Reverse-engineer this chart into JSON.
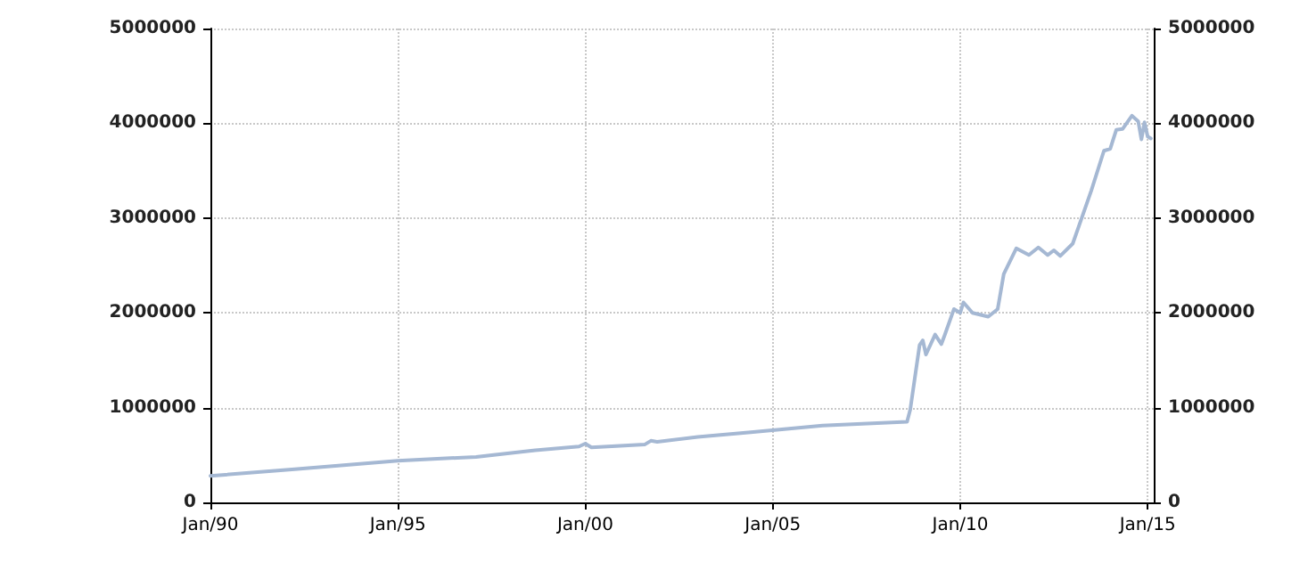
{
  "chart_data": {
    "type": "line",
    "x": [
      "1990-01",
      "1992-04",
      "1995-01",
      "1997-02",
      "1998-09",
      "1999-11",
      "2000-01",
      "2000-03",
      "2001-08",
      "2001-10",
      "2001-12",
      "2003-01",
      "2004-06",
      "2006-05",
      "2008-08",
      "2008-09",
      "2008-12",
      "2009-01",
      "2009-02",
      "2009-05",
      "2009-07",
      "2009-08",
      "2009-11",
      "2010-01",
      "2010-02",
      "2010-05",
      "2010-10",
      "2011-01",
      "2011-03",
      "2011-07",
      "2011-11",
      "2012-02",
      "2012-05",
      "2012-07",
      "2012-09",
      "2013-01",
      "2013-07",
      "2013-11",
      "2014-01",
      "2014-03",
      "2014-05",
      "2014-08",
      "2014-10",
      "2014-11",
      "2014-12",
      "2015-01",
      "2015-02"
    ],
    "series": [
      {
        "color": "#a5b8d3",
        "values": [
          280000,
          350000,
          440000,
          480000,
          550000,
          590000,
          620000,
          580000,
          610000,
          650000,
          640000,
          690000,
          740000,
          810000,
          850000,
          980000,
          1660000,
          1710000,
          1560000,
          1770000,
          1670000,
          1760000,
          2040000,
          2000000,
          2110000,
          2000000,
          1960000,
          2040000,
          2410000,
          2680000,
          2610000,
          2690000,
          2610000,
          2660000,
          2600000,
          2730000,
          3290000,
          3710000,
          3730000,
          3930000,
          3940000,
          4080000,
          4020000,
          3830000,
          4010000,
          3860000,
          3840000
        ]
      }
    ],
    "xlim": [
      "1990-01",
      "2015-03"
    ],
    "xticks": [
      {
        "value": "1990-01",
        "label": "Jan/90"
      },
      {
        "value": "1995-01",
        "label": "Jan/95"
      },
      {
        "value": "2000-01",
        "label": "Jan/00"
      },
      {
        "value": "2005-01",
        "label": "Jan/05"
      },
      {
        "value": "2010-01",
        "label": "Jan/10"
      },
      {
        "value": "2015-01",
        "label": "Jan/15"
      }
    ],
    "ylim": [
      0,
      5000000
    ],
    "yticks": [
      0,
      1000000,
      2000000,
      3000000,
      4000000,
      5000000
    ],
    "y2lim": [
      0,
      5000000
    ],
    "y2ticks": [
      0,
      1000000,
      2000000,
      3000000,
      4000000,
      5000000
    ],
    "grid": true,
    "marker": "none",
    "line_style": "solid"
  }
}
